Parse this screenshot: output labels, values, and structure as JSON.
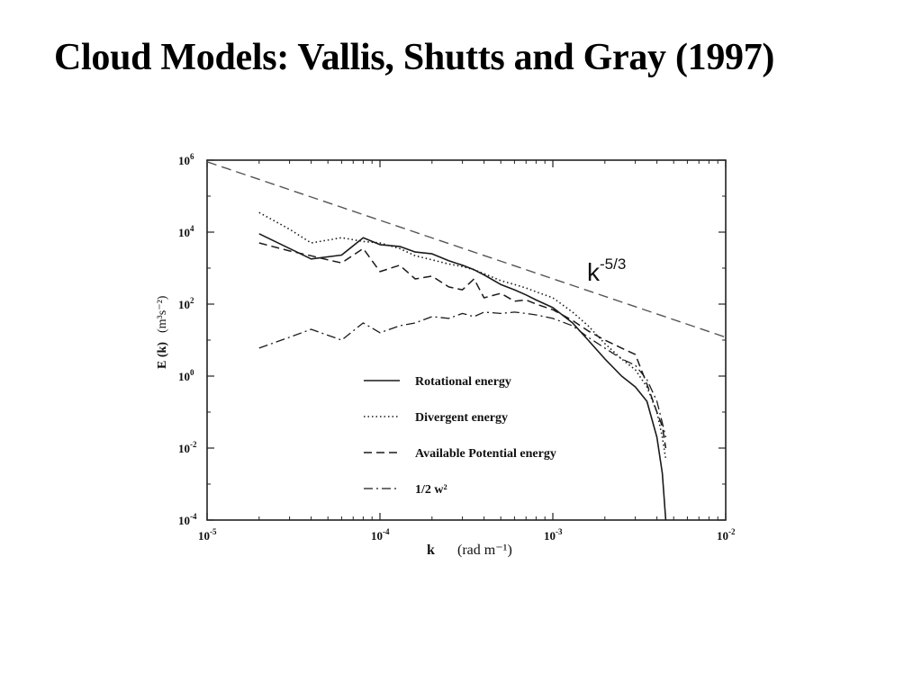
{
  "slide": {
    "title": "Cloud Models: Vallis, Shutts and Gray (1997)"
  },
  "chart_data": {
    "type": "line",
    "title": "",
    "xlabel": "k",
    "xlabel_units": "(rad m⁻¹)",
    "ylabel": "E (k)",
    "ylabel_units": "(m³s⁻²)",
    "x_scale": "log",
    "y_scale": "log",
    "xlim": [
      1e-05,
      0.01
    ],
    "ylim": [
      0.0001,
      1000000.0
    ],
    "x_ticks": [
      {
        "value": 1e-05,
        "base": "10",
        "exp": "-5"
      },
      {
        "value": 0.0001,
        "base": "10",
        "exp": "-4"
      },
      {
        "value": 0.001,
        "base": "10",
        "exp": "-3"
      },
      {
        "value": 0.01,
        "base": "10",
        "exp": "-2"
      }
    ],
    "y_ticks": [
      {
        "value": 0.0001,
        "base": "10",
        "exp": "-4"
      },
      {
        "value": 0.01,
        "base": "10",
        "exp": "-2"
      },
      {
        "value": 1.0,
        "base": "10",
        "exp": "0"
      },
      {
        "value": 100.0,
        "base": "10",
        "exp": "2"
      },
      {
        "value": 10000.0,
        "base": "10",
        "exp": "4"
      },
      {
        "value": 1000000.0,
        "base": "10",
        "exp": "6"
      }
    ],
    "grid": false,
    "legend_position": "lower-center",
    "annotation": {
      "base": "k",
      "exp": "-5/3"
    },
    "reference_line": {
      "style": "dashed-long",
      "x": [
        1e-05,
        0.01
      ],
      "y": [
        900000,
        12
      ]
    },
    "series": [
      {
        "name": "Rotational energy",
        "style": "solid",
        "x": [
          2e-05,
          3e-05,
          4e-05,
          6e-05,
          8e-05,
          0.0001,
          0.00013,
          0.00016,
          0.0002,
          0.00025,
          0.0003,
          0.00035,
          0.0004,
          0.0005,
          0.0006,
          0.0007,
          0.0008,
          0.001,
          0.0013,
          0.0016,
          0.002,
          0.0025,
          0.003,
          0.0035,
          0.004,
          0.0043,
          0.0045
        ],
        "y": [
          9000,
          3500,
          1800,
          2300,
          7000,
          4500,
          4000,
          2800,
          2500,
          1600,
          1200,
          900,
          650,
          350,
          250,
          180,
          130,
          80,
          30,
          10,
          3,
          1,
          0.5,
          0.2,
          0.02,
          0.002,
          0.0001
        ]
      },
      {
        "name": "Divergent energy",
        "style": "dotted",
        "x": [
          2e-05,
          3e-05,
          4e-05,
          6e-05,
          8e-05,
          0.0001,
          0.00013,
          0.00016,
          0.0002,
          0.00025,
          0.0003,
          0.00035,
          0.0004,
          0.0005,
          0.0006,
          0.0007,
          0.0008,
          0.001,
          0.0013,
          0.0016,
          0.002,
          0.0025,
          0.003,
          0.0035,
          0.004,
          0.0043,
          0.0045
        ],
        "y": [
          35000,
          12000,
          5000,
          7000,
          5500,
          5000,
          3500,
          2200,
          1700,
          1300,
          1100,
          900,
          700,
          450,
          350,
          280,
          220,
          150,
          60,
          25,
          8,
          3,
          1.5,
          0.5,
          0.1,
          0.02,
          0.005
        ]
      },
      {
        "name": "Available Potential energy",
        "style": "dashed",
        "x": [
          2e-05,
          3e-05,
          4e-05,
          5e-05,
          6e-05,
          8e-05,
          0.0001,
          0.00013,
          0.00016,
          0.0002,
          0.00025,
          0.0003,
          0.00035,
          0.0004,
          0.0005,
          0.0006,
          0.0007,
          0.0008,
          0.001,
          0.0013,
          0.0016,
          0.002,
          0.0025,
          0.003,
          0.0035,
          0.004,
          0.0043,
          0.0045
        ],
        "y": [
          5000,
          3000,
          2200,
          1700,
          1400,
          3500,
          800,
          1200,
          500,
          600,
          300,
          250,
          500,
          150,
          200,
          120,
          130,
          100,
          70,
          35,
          18,
          10,
          6,
          4,
          0.6,
          0.1,
          0.04,
          0.01
        ]
      },
      {
        "name": "1/2 w²",
        "style": "dashdot",
        "x": [
          2e-05,
          3e-05,
          4e-05,
          6e-05,
          8e-05,
          0.0001,
          0.00013,
          0.00016,
          0.0002,
          0.00025,
          0.0003,
          0.00035,
          0.0004,
          0.0005,
          0.0006,
          0.0007,
          0.0008,
          0.001,
          0.0013,
          0.0016,
          0.002,
          0.0025,
          0.003,
          0.0035,
          0.004,
          0.0043,
          0.0045
        ],
        "y": [
          6,
          12,
          20,
          10,
          30,
          16,
          25,
          30,
          45,
          40,
          55,
          45,
          60,
          55,
          60,
          55,
          50,
          40,
          25,
          12,
          6,
          3,
          2,
          0.8,
          0.2,
          0.05,
          0.02
        ]
      }
    ]
  }
}
